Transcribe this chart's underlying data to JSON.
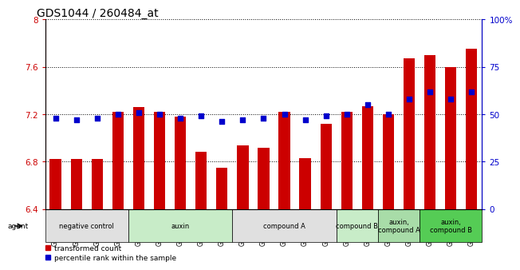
{
  "title": "GDS1044 / 260484_at",
  "samples": [
    "GSM25858",
    "GSM25859",
    "GSM25860",
    "GSM25861",
    "GSM25862",
    "GSM25863",
    "GSM25864",
    "GSM25865",
    "GSM25866",
    "GSM25867",
    "GSM25868",
    "GSM25869",
    "GSM25870",
    "GSM25871",
    "GSM25872",
    "GSM25873",
    "GSM25874",
    "GSM25875",
    "GSM25876",
    "GSM25877",
    "GSM25878"
  ],
  "bar_values": [
    6.82,
    6.82,
    6.82,
    7.22,
    7.26,
    7.22,
    7.18,
    6.88,
    6.75,
    6.94,
    6.92,
    7.22,
    6.83,
    7.12,
    7.22,
    7.27,
    7.2,
    7.67,
    7.7,
    7.6,
    7.75
  ],
  "percentile_values": [
    48,
    47,
    48,
    50,
    51,
    50,
    48,
    49,
    46,
    47,
    48,
    50,
    47,
    49,
    50,
    55,
    50,
    58,
    62,
    58,
    62
  ],
  "ylim": [
    6.4,
    8.0
  ],
  "yticks": [
    6.4,
    6.8,
    7.2,
    7.6,
    8.0
  ],
  "ytick_labels": [
    "6.4",
    "6.8",
    "7.2",
    "7.6",
    "8"
  ],
  "right_yticks": [
    0,
    25,
    50,
    75,
    100
  ],
  "right_ytick_labels": [
    "0",
    "25",
    "50",
    "75",
    "100%"
  ],
  "bar_color": "#cc0000",
  "dot_color": "#0000cc",
  "bar_bottom": 6.4,
  "groups": [
    {
      "label": "negative control",
      "start": 0,
      "end": 4,
      "color": "#e0e0e0"
    },
    {
      "label": "auxin",
      "start": 4,
      "end": 9,
      "color": "#c8ecc8"
    },
    {
      "label": "compound A",
      "start": 9,
      "end": 14,
      "color": "#e0e0e0"
    },
    {
      "label": "compound B",
      "start": 14,
      "end": 16,
      "color": "#c8ecc8"
    },
    {
      "label": "auxin,\ncompound A",
      "start": 16,
      "end": 18,
      "color": "#a8dca8"
    },
    {
      "label": "auxin,\ncompound B",
      "start": 18,
      "end": 21,
      "color": "#55cc55"
    }
  ],
  "legend_items": [
    {
      "label": "transformed count",
      "color": "#cc0000"
    },
    {
      "label": "percentile rank within the sample",
      "color": "#0000cc"
    }
  ],
  "title_fontsize": 10,
  "axis_label_color_left": "#cc0000",
  "axis_label_color_right": "#0000cc",
  "grid_style": "dotted",
  "bar_width": 0.55
}
